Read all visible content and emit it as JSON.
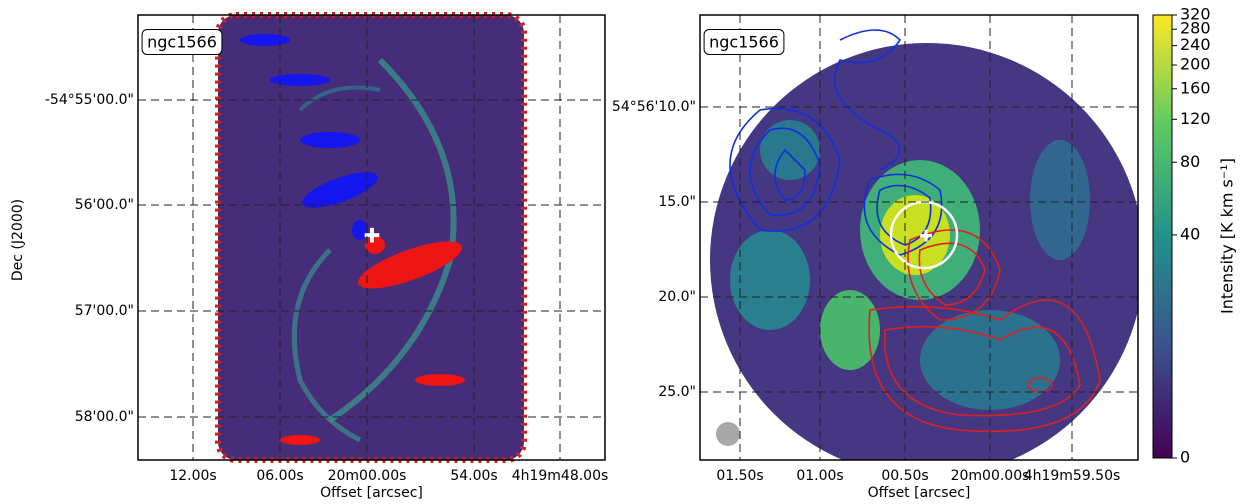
{
  "panels": [
    {
      "label": "ngc1566",
      "xticks": [
        "12.00s",
        "06.00s",
        "20m00.00s",
        "54.00s",
        "4h19m48.00s"
      ],
      "yticks": [
        "-54°55'00.0\"",
        "56'00.0\"",
        "57'00.0\"",
        "58'00.0\""
      ],
      "xlabel": "Offset [arcsec]",
      "ylabel": "Dec (J2000)"
    },
    {
      "label": "ngc1566",
      "xticks": [
        "01.50s",
        "01.00s",
        "00.50s",
        "20m00.00s",
        "4h19m59.50s"
      ],
      "yticks": [
        "54°56'10.0\"",
        "15.0\"",
        "20.0\"",
        "25.0\""
      ],
      "xlabel": "Offset [arcsec]"
    }
  ],
  "colorbar": {
    "label": "Intensity [K km s⁻¹]",
    "lim": [
      0,
      320
    ],
    "ticks": [
      0,
      40,
      80,
      120,
      160,
      200,
      240,
      280,
      320
    ],
    "scale": "asinh"
  }
}
